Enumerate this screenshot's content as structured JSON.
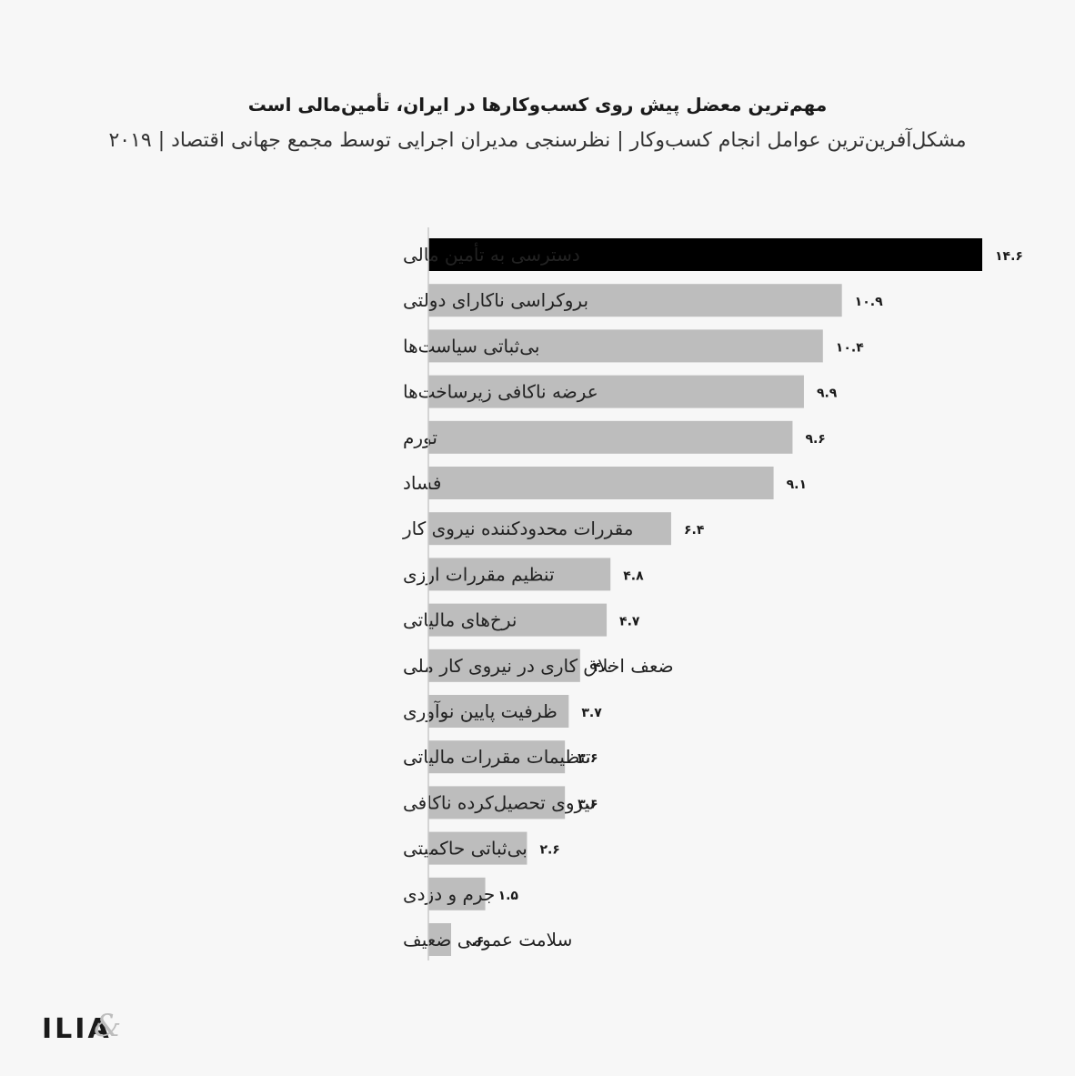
{
  "header": {
    "title": "مهم‌ترین معضل پیش روی کسب‌وکارها در ایران، تأمین‌مالی است",
    "subtitle": "مشکل‌آفرین‌ترین عوامل انجام کسب‌وکار | نظرسنجی مدیران اجرایی توسط مجمع جهانی اقتصاد | ۲۰۱۹"
  },
  "brand": {
    "logo": "ILIA",
    "logo_mark": "&"
  },
  "colors": {
    "highlight": "#000000",
    "bar": "#bdbdbd",
    "axis": "#c8c8c8",
    "label": "#222222",
    "value": "#1a1a1a"
  },
  "chart_data": {
    "type": "bar",
    "orientation": "horizontal",
    "title": "مهم‌ترین معضل پیش روی کسب‌وکارها در ایران، تأمین‌مالی است",
    "subtitle": "مشکل‌آفرین‌ترین عوامل انجام کسب‌وکار | نظرسنجی مدیران اجرایی توسط مجمع جهانی اقتصاد | ۲۰۱۹",
    "categories": [
      "دسترسی به تأمین مالی",
      "بروکراسی ناکارای دولتی",
      "بی‌ثباتی سیاست‌ها",
      "عرضه ناکافی زیرساخت‌ها",
      "تورم",
      "فساد",
      "مقررات محدودکننده نیروی کار",
      "تنظیم مقررات ارزی",
      "نرخ‌های مالیاتی",
      "ضعف اخلاق کاری در نیروی کار ملی",
      "ظرفیت پایین نوآوری",
      "تنظیمات مقررات مالیاتی",
      "نیروی تحصیل‌کرده ناکافی",
      "بی‌ثباتی حاکمیتی",
      "جرم و دزدی",
      "سلامت عمومی ضعیف"
    ],
    "values": [
      14.6,
      10.9,
      10.4,
      9.9,
      9.6,
      9.1,
      6.4,
      4.8,
      4.7,
      4.0,
      3.7,
      3.6,
      3.6,
      2.6,
      1.5,
      0.6
    ],
    "value_labels": [
      "۱۴.۶",
      "۱۰.۹",
      "۱۰.۴",
      "۹.۹",
      "۹.۶",
      "۹.۱",
      "۶.۴",
      "۴.۸",
      "۴.۷",
      "۴.۰",
      "۳.۷",
      "۳.۶",
      "۳.۶",
      "۲.۶",
      "۱.۵",
      "۰.۶"
    ],
    "highlight_index": 0,
    "xlim": [
      0,
      14.6
    ],
    "grid": false,
    "legend": "none"
  }
}
